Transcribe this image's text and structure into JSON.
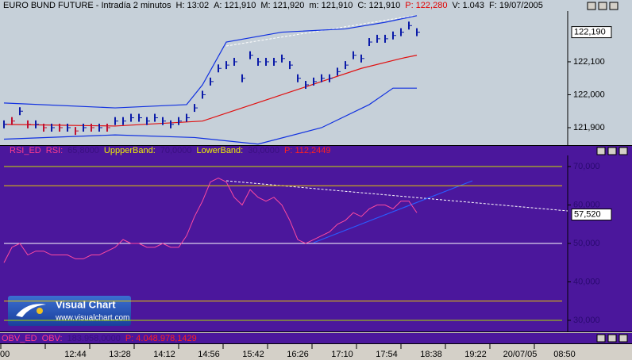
{
  "price_panel": {
    "header": [
      "EURO BUND FUTURE - Intradía 2 minutos",
      "H: 13:02",
      "A: 121,910",
      "M: 121,920",
      "m: 121,910",
      "C: 121,910",
      "P: 122,280",
      "V: 1.043",
      "F: 19/07/2005"
    ],
    "ylim": [
      121.847,
      122.254
    ],
    "yticks": [
      {
        "value": 121.9,
        "label": "121,900"
      },
      {
        "value": 122.0,
        "label": "122,000"
      },
      {
        "value": 122.1,
        "label": "122,100"
      }
    ],
    "last": {
      "value": 122.19,
      "label": "122,190"
    },
    "bars": [
      121.91,
      121.92,
      121.95,
      121.91,
      121.91,
      121.9,
      121.9,
      121.9,
      121.9,
      121.89,
      121.9,
      121.9,
      121.9,
      121.9,
      121.92,
      121.92,
      121.93,
      121.93,
      121.92,
      121.93,
      121.92,
      121.91,
      121.92,
      121.93,
      121.96,
      122.0,
      122.04,
      122.08,
      122.09,
      122.1,
      122.05,
      122.12,
      122.1,
      122.1,
      122.1,
      122.11,
      122.09,
      122.05,
      122.03,
      122.04,
      122.05,
      122.05,
      122.07,
      122.09,
      122.12,
      122.11,
      122.16,
      122.17,
      122.17,
      122.18,
      122.19,
      122.21,
      122.19
    ],
    "upper_band": {
      "x": [
        0,
        14,
        23,
        25,
        28,
        35,
        43,
        48,
        52
      ],
      "values": [
        121.975,
        121.96,
        121.97,
        122.03,
        122.16,
        122.19,
        122.2,
        122.22,
        122.24
      ]
    },
    "lower_band": {
      "x": [
        0,
        14,
        24,
        32,
        40,
        46,
        49,
        52
      ],
      "values": [
        121.865,
        121.878,
        121.87,
        121.85,
        121.9,
        121.97,
        122.02,
        122.02
      ]
    },
    "average": {
      "x": [
        0,
        14,
        25,
        30,
        35,
        40,
        45,
        50,
        52
      ],
      "values": [
        121.91,
        121.905,
        121.92,
        121.96,
        122.0,
        122.04,
        122.08,
        122.11,
        122.12
      ]
    }
  },
  "rsi_panel": {
    "header": [
      "RSI_ED",
      "RSI:",
      "65,8000",
      "UppperBand:",
      "70,0000",
      "LowerBand:",
      "30,0000",
      "P: 112,2449"
    ],
    "ylim": [
      27.1,
      72.9
    ],
    "yticks": [
      {
        "value": 30,
        "label": "30,000"
      },
      {
        "value": 40,
        "label": "40,000"
      },
      {
        "value": 50,
        "label": "50,000"
      },
      {
        "value": 60,
        "label": "60,000"
      },
      {
        "value": 70,
        "label": "70,000"
      }
    ],
    "levels": [
      70,
      65,
      50,
      35,
      30
    ],
    "last": {
      "value": 57.52,
      "label": "57,520"
    },
    "values": [
      45,
      49,
      50,
      47,
      48,
      48,
      47,
      47,
      47,
      46,
      46,
      47,
      47,
      48,
      49,
      51,
      50,
      50,
      49,
      49,
      50,
      49,
      49,
      52,
      57,
      61,
      66,
      67,
      66,
      62,
      60,
      64,
      62,
      61,
      62,
      60,
      56,
      51,
      50,
      51,
      52,
      53,
      55,
      56,
      58,
      57,
      59,
      60,
      60,
      59,
      61,
      61,
      58
    ]
  },
  "obv_panel": {
    "header": [
      "OBV_ED",
      "OBV:",
      "183.958,0000",
      "P: 4.048.978,1429"
    ]
  },
  "time_axis": [
    "00",
    "12:44",
    "13:28",
    "14:12",
    "14:56",
    "15:42",
    "16:26",
    "17:10",
    "17:54",
    "18:38",
    "19:22",
    "20/07/05",
    "08:50"
  ],
  "logo": {
    "title": "Visual Chart",
    "url": "www.visualchart.com"
  }
}
